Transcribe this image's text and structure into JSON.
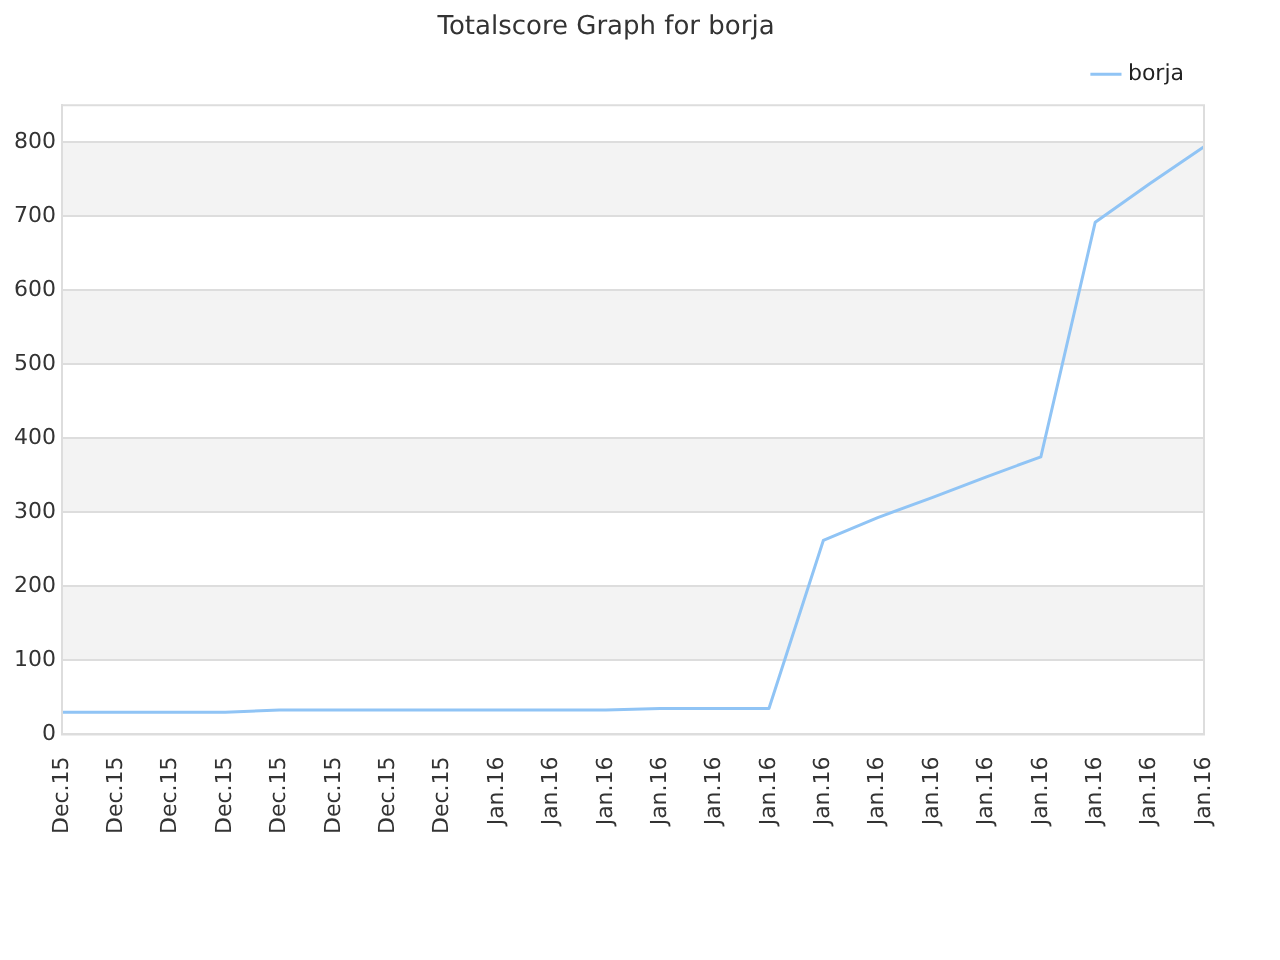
{
  "chart_data": {
    "type": "line",
    "title": "Totalscore Graph for borja",
    "categories": [
      "Dec.15",
      "Dec.15",
      "Dec.15",
      "Dec.15",
      "Dec.15",
      "Dec.15",
      "Dec.15",
      "Dec.15",
      "Jan.16",
      "Jan.16",
      "Jan.16",
      "Jan.16",
      "Jan.16",
      "Jan.16",
      "Jan.16",
      "Jan.16",
      "Jan.16",
      "Jan.16",
      "Jan.16",
      "Jan.16",
      "Jan.16",
      "Jan.16"
    ],
    "series": [
      {
        "name": "borja",
        "color": "#90c4f5",
        "values": [
          30,
          30,
          30,
          30,
          33,
          33,
          33,
          33,
          33,
          33,
          33,
          35,
          35,
          35,
          262,
          293,
          320,
          348,
          375,
          692,
          744,
          794
        ]
      }
    ],
    "ylim": [
      0,
      850
    ],
    "yticks": [
      0,
      100,
      200,
      300,
      400,
      500,
      600,
      700,
      800
    ],
    "grid": "y",
    "legend": "top right",
    "marker": "none",
    "line_style": "solid"
  }
}
